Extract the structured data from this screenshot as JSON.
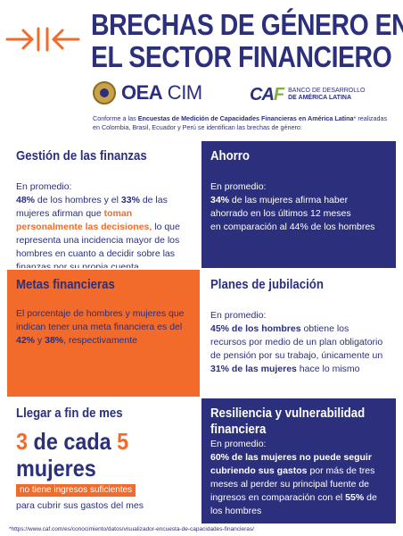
{
  "header": {
    "title_line1": "BRECHAS DE GÉNERO EN",
    "title_line2": "EL SECTOR FINANCIERO",
    "logo_oea_bold": "OEA",
    "logo_oea_rest": " CIM",
    "logo_caf_mark_1": "CA",
    "logo_caf_mark_2": "F",
    "logo_caf_line1": "BANCO DE DESARROLLO",
    "logo_caf_line2": "DE AMÉRICA LATINA",
    "intro_pre": "Conforme a las ",
    "intro_bold": "Encuestas de Medición de Capacidades Financieras en América Latina",
    "intro_post": "* realizadas en Colombia, Brasil, Ecuador y Perú se identifican las brechas de género:"
  },
  "cells": {
    "finanzas": {
      "heading": "Gestión de las finanzas",
      "lead": "En promedio:",
      "v1": "48%",
      "t1": " de los hombres y el ",
      "v2": "33%",
      "t2": " de las mujeres afirman que ",
      "highlight": "toman personalmente las decisiones",
      "t3": ", lo que representa una incidencia mayor de los hombres en cuanto a decidir sobre las finanzas por su propia cuenta"
    },
    "ahorro": {
      "heading": "Ahorro",
      "lead": "En promedio:",
      "v1": "34%",
      "t1": " de las mujeres afirma haber ahorrado en los últimos 12 meses",
      "t2": "en comparación al 44% de los hombres"
    },
    "metas": {
      "heading": "Metas financieras",
      "t1": "El porcentaje de hombres y mujeres que indican tener una meta financiera es del ",
      "v1": "42%",
      "t2": " y ",
      "v2": "38%",
      "t3": ", respectivamente"
    },
    "jubilacion": {
      "heading": "Planes de jubilación",
      "lead": "En promedio:",
      "v1": "45% de los hombres",
      "t1": " obtiene los recursos por medio de un plan obligatorio de pensión por su trabajo, únicamente un ",
      "v2": "31% de las mujeres",
      "t2": " hace lo mismo"
    },
    "finmes": {
      "heading": "Llegar a fin de mes",
      "n1": "3",
      "mid": " de cada ",
      "n2": "5",
      "word": "mujeres",
      "tag": "no tiene ingresos suficientes",
      "after": "para cubrir sus gastos del mes"
    },
    "resiliencia": {
      "heading_l1": "Resiliencia y vulnerabilidad",
      "heading_l2": "financiera",
      "lead": "En promedio:",
      "v1": "60% de las mujeres no puede seguir cubriendo sus gastos",
      "t1": " por más de tres meses al perder su principal fuente de ingresos en comparación con el ",
      "v2": "55%",
      "t2": " de los hombres"
    }
  },
  "footnote": "*https://www.caf.com/es/conocimiento/datos/visualizador-encuesta-de-capacidades-financieras/",
  "colors": {
    "navy": "#2b2f7c",
    "orange": "#f26b2a",
    "green": "#7fb13c"
  },
  "icons": {
    "arrows": "converging-arrows-icon",
    "oea": "oea-seal-icon"
  }
}
